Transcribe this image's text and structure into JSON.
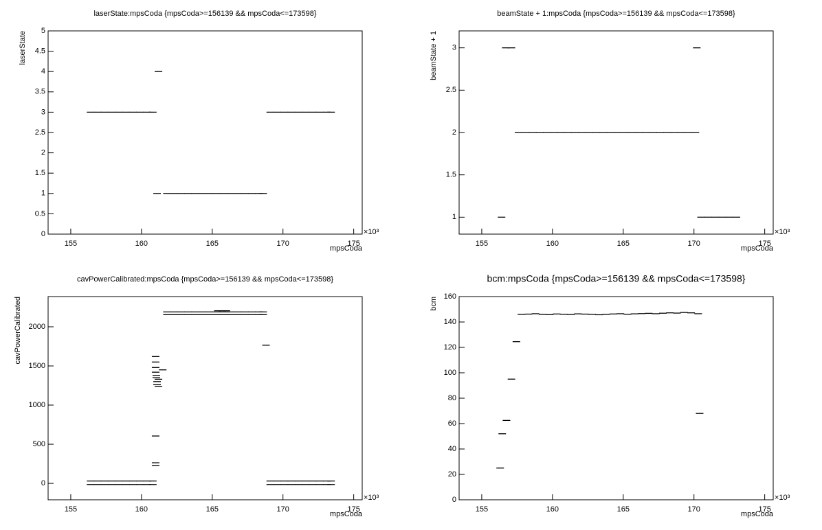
{
  "chart_data": [
    {
      "type": "scatter",
      "title": "laserState:mpsCoda {mpsCoda>=156139 && mpsCoda<=173598}",
      "xlabel": "mpsCoda",
      "ylabel": "laserState",
      "x_multiplier": "×10³",
      "color": "#000000",
      "xlim": [
        153.4,
        175.6
      ],
      "xticks": [
        155,
        160,
        165,
        170,
        175
      ],
      "ylim": [
        0,
        5
      ],
      "yticks": [
        0,
        0.5,
        1,
        1.5,
        2,
        2.5,
        3,
        3.5,
        4,
        4.5,
        5
      ],
      "x": [
        156.4,
        156.9,
        157.4,
        157.9,
        158.4,
        158.9,
        159.4,
        159.9,
        160.4,
        160.8,
        161.2,
        161.1,
        161.8,
        162.3,
        162.8,
        163.3,
        163.8,
        164.3,
        164.8,
        165.3,
        165.8,
        166.3,
        166.8,
        167.3,
        167.8,
        168.3,
        168.6,
        169.1,
        169.6,
        170.1,
        170.6,
        171.1,
        171.6,
        172.1,
        172.6,
        173.1,
        173.4
      ],
      "values": [
        3,
        3,
        3,
        3,
        3,
        3,
        3,
        3,
        3,
        3,
        4,
        1,
        1,
        1,
        1,
        1,
        1,
        1,
        1,
        1,
        1,
        1,
        1,
        1,
        1,
        1,
        1,
        3,
        3,
        3,
        3,
        3,
        3,
        3,
        3,
        3,
        3
      ]
    },
    {
      "type": "scatter",
      "title": "beamState + 1:mpsCoda {mpsCoda>=156139 && mpsCoda<=173598}",
      "xlabel": "mpsCoda",
      "ylabel": "beamState + 1",
      "x_multiplier": "×10³",
      "color": "#000000",
      "xlim": [
        153.4,
        175.6
      ],
      "xticks": [
        155,
        160,
        165,
        170,
        175
      ],
      "ylim": [
        0.8,
        3.2
      ],
      "yticks": [
        1,
        1.5,
        2,
        2.5,
        3
      ],
      "x": [
        156.4,
        156.7,
        157.1,
        157.6,
        158.1,
        158.6,
        159.1,
        159.6,
        160.1,
        160.6,
        161.1,
        161.6,
        162.1,
        162.6,
        163.1,
        163.6,
        164.1,
        164.6,
        165.1,
        165.6,
        166.1,
        166.6,
        167.1,
        167.6,
        168.1,
        168.6,
        169.1,
        169.6,
        170.1,
        170.2,
        170.5,
        171.0,
        171.5,
        172.0,
        172.5,
        173.0
      ],
      "values": [
        1,
        3,
        3,
        2,
        2,
        2,
        2,
        2,
        2,
        2,
        2,
        2,
        2,
        2,
        2,
        2,
        2,
        2,
        2,
        2,
        2,
        2,
        2,
        2,
        2,
        2,
        2,
        2,
        2,
        3,
        1,
        1,
        1,
        1,
        1,
        1
      ]
    },
    {
      "type": "scatter",
      "title": "cavPowerCalibrated:mpsCoda {mpsCoda>=156139 && mpsCoda<=173598}",
      "xlabel": "mpsCoda",
      "ylabel": "cavPowerCalibrated",
      "x_multiplier": "×10³",
      "color": "#000000",
      "xlim": [
        153.4,
        175.6
      ],
      "xticks": [
        155,
        160,
        165,
        170,
        175
      ],
      "ylim": [
        -210,
        2386
      ],
      "yticks": [
        0,
        500,
        1000,
        1500,
        2000
      ],
      "x": [
        156.4,
        156.9,
        157.4,
        157.9,
        158.4,
        158.9,
        159.4,
        159.9,
        160.4,
        160.8,
        156.4,
        156.9,
        157.4,
        157.9,
        158.4,
        158.9,
        159.4,
        159.9,
        160.4,
        160.8,
        169.1,
        169.6,
        170.1,
        170.6,
        171.1,
        171.6,
        172.1,
        172.6,
        173.1,
        173.4,
        169.1,
        169.6,
        170.1,
        170.6,
        171.1,
        171.6,
        172.1,
        172.6,
        173.1,
        173.4,
        161.8,
        162.3,
        162.8,
        163.3,
        163.8,
        164.3,
        164.8,
        165.3,
        165.8,
        166.3,
        166.8,
        167.3,
        167.8,
        168.3,
        168.6,
        161.8,
        162.3,
        162.8,
        163.3,
        163.8,
        164.3,
        164.8,
        165.3,
        165.8,
        166.3,
        166.8,
        167.3,
        167.8,
        168.3,
        168.6,
        161.0,
        161.0,
        161.0,
        161.0,
        161.05,
        161.1,
        161.1,
        161.2,
        161.2,
        161.05,
        161.0,
        161.0,
        161.0,
        168.8,
        161.5,
        165.4,
        165.7,
        166.0
      ],
      "values": [
        30,
        30,
        30,
        30,
        30,
        30,
        30,
        30,
        30,
        30,
        -15,
        -15,
        -15,
        -15,
        -15,
        -15,
        -15,
        -15,
        -15,
        -15,
        30,
        30,
        30,
        30,
        30,
        30,
        30,
        30,
        30,
        30,
        -15,
        -15,
        -15,
        -15,
        -15,
        -15,
        -15,
        -15,
        -15,
        -15,
        2190,
        2190,
        2190,
        2190,
        2190,
        2190,
        2190,
        2190,
        2190,
        2190,
        2190,
        2190,
        2190,
        2190,
        2190,
        2155,
        2155,
        2155,
        2155,
        2155,
        2155,
        2155,
        2155,
        2155,
        2155,
        2155,
        2155,
        2155,
        2155,
        2155,
        1620,
        1550,
        1480,
        1420,
        1350,
        1300,
        1260,
        1240,
        1330,
        1380,
        605,
        263,
        225,
        1765,
        1450,
        2205,
        2205,
        2205
      ]
    },
    {
      "type": "scatter",
      "title": "bcm:mpsCoda {mpsCoda>=156139 && mpsCoda<=173598}",
      "xlabel": "mpsCoda",
      "ylabel": "bcm",
      "x_multiplier": "×10³",
      "color": "#000000",
      "xlim": [
        153.4,
        175.6
      ],
      "xticks": [
        155,
        160,
        165,
        170,
        175
      ],
      "ylim": [
        0,
        160
      ],
      "yticks": [
        0,
        20,
        40,
        60,
        80,
        100,
        120,
        140,
        160
      ],
      "x": [
        156.3,
        156.45,
        156.75,
        157.1,
        157.45,
        157.8,
        158.3,
        158.8,
        159.3,
        159.8,
        160.3,
        160.8,
        161.3,
        161.8,
        162.3,
        162.8,
        163.3,
        163.8,
        164.3,
        164.8,
        165.3,
        165.8,
        166.3,
        166.8,
        167.3,
        167.8,
        168.3,
        168.8,
        169.3,
        169.8,
        170.3,
        170.4
      ],
      "values": [
        25,
        52,
        62.5,
        95,
        124.5,
        146,
        146.2,
        146.5,
        146,
        145.8,
        146.3,
        146.1,
        145.9,
        146.4,
        146.2,
        146,
        145.7,
        146,
        146.3,
        146.5,
        146.1,
        146.4,
        146.6,
        146.8,
        146.5,
        146.9,
        147.2,
        147,
        147.5,
        147.2,
        146.5,
        68
      ]
    }
  ]
}
